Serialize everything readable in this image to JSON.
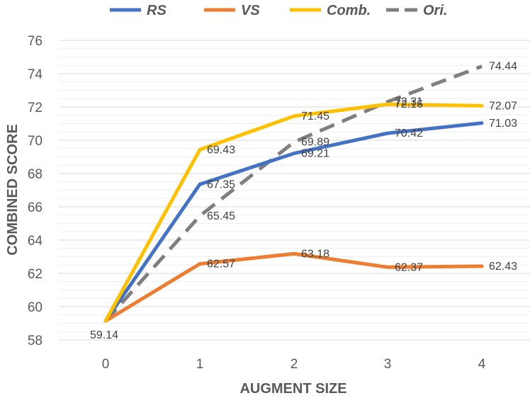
{
  "chart_data": {
    "type": "line",
    "title": "",
    "xlabel": "AUGMENT SIZE",
    "ylabel": "COMBINED SCORE",
    "x": [
      0,
      1,
      2,
      3,
      4
    ],
    "x_tick_labels": [
      "0",
      "1",
      "2",
      "3",
      "4"
    ],
    "ylim": [
      58,
      76
    ],
    "y_ticks": [
      58,
      60,
      62,
      64,
      66,
      68,
      70,
      72,
      74,
      76
    ],
    "y_tick_labels": [
      "58",
      "60",
      "62",
      "64",
      "66",
      "68",
      "70",
      "72",
      "74",
      "76"
    ],
    "grid": true,
    "legend_position": "top",
    "series": [
      {
        "name": "RS",
        "color": "#4472C4",
        "dashed": false,
        "values": [
          59.14,
          67.35,
          69.21,
          70.42,
          71.03
        ],
        "labels": [
          "",
          "67.35",
          "69.21",
          "70.42",
          "71.03"
        ]
      },
      {
        "name": "VS",
        "color": "#ED7D31",
        "dashed": false,
        "values": [
          59.14,
          62.57,
          63.18,
          62.37,
          62.43
        ],
        "labels": [
          "59.14",
          "62.57",
          "63.18",
          "62.37",
          "62.43"
        ]
      },
      {
        "name": "Comb.",
        "color": "#FFC000",
        "dashed": false,
        "values": [
          59.14,
          69.43,
          71.45,
          72.16,
          72.07
        ],
        "labels": [
          "",
          "69.43",
          "71.45",
          "72.16",
          "72.07"
        ]
      },
      {
        "name": "Ori.",
        "color": "#7F7F7F",
        "dashed": true,
        "values": [
          59.14,
          65.45,
          69.89,
          72.31,
          74.44
        ],
        "labels": [
          "",
          "65.45",
          "69.89",
          "72.31",
          "74.44"
        ]
      }
    ]
  }
}
